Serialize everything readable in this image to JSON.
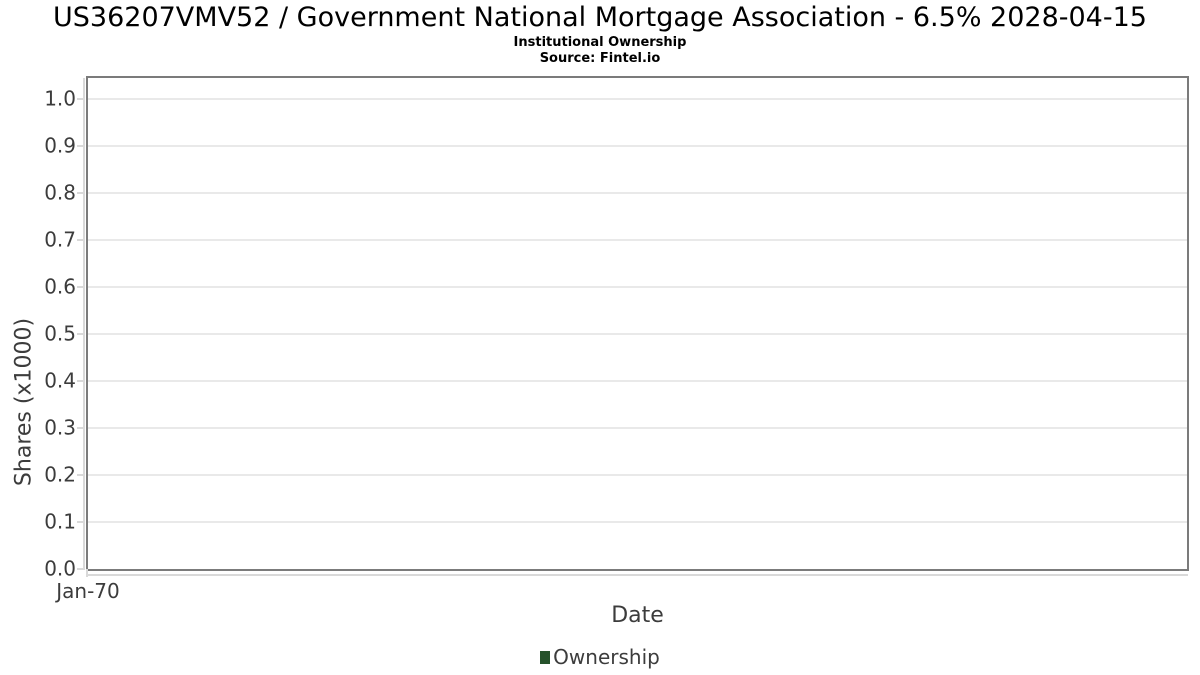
{
  "header": {
    "title": "US36207VMV52 / Government National Mortgage Association - 6.5% 2028-04-15",
    "subtitle": "Institutional Ownership",
    "source": "Source: Fintel.io"
  },
  "axes": {
    "x_label": "Date",
    "y_label": "Shares (x1000)",
    "x_ticks": [
      "Jan-70"
    ],
    "y_ticks": [
      "0.0",
      "0.1",
      "0.2",
      "0.3",
      "0.4",
      "0.5",
      "0.6",
      "0.7",
      "0.8",
      "0.9",
      "1.0"
    ]
  },
  "legend": {
    "items": [
      {
        "label": "Ownership",
        "color": "#26522b"
      }
    ]
  },
  "colors": {
    "grid": "#e9e9e9",
    "axis_line": "#d9d9d9",
    "plot_border": "#7b7b7b",
    "text": "#3c3c3c",
    "title_text": "#000000",
    "series_green": "#26522b"
  },
  "chart_data": {
    "type": "line",
    "title": "US36207VMV52 / Government National Mortgage Association - 6.5% 2028-04-15",
    "subtitle": "Institutional Ownership",
    "source": "Source: Fintel.io",
    "xlabel": "Date",
    "ylabel": "Shares (x1000)",
    "x_tick_labels": [
      "Jan-70"
    ],
    "y_tick_values": [
      0.0,
      0.1,
      0.2,
      0.3,
      0.4,
      0.5,
      0.6,
      0.7,
      0.8,
      0.9,
      1.0
    ],
    "ylim": [
      0,
      1.05
    ],
    "grid": "horizontal",
    "legend_position": "bottom",
    "series": [
      {
        "name": "Ownership",
        "color": "#26522b",
        "x": [],
        "values": []
      }
    ]
  }
}
